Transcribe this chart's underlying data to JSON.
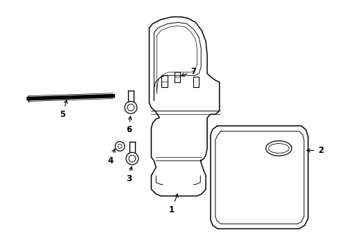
{
  "background_color": "#ffffff",
  "line_color": "#000000",
  "label_fontsize": 8.5
}
